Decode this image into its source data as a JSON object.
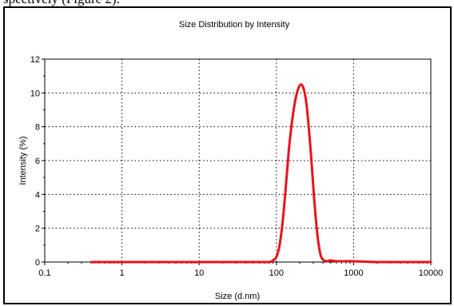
{
  "page": {
    "caption_fragment": "spectively (Figure 2)."
  },
  "chart_data": {
    "type": "line",
    "title": "Size Distribution by Intensity",
    "xlabel": "Size (d.nm)",
    "ylabel": "Intensity (%)",
    "x_scale": "log",
    "xlim": [
      0.1,
      10000
    ],
    "ylim": [
      0,
      12
    ],
    "x_ticks": [
      0.1,
      1,
      10,
      100,
      1000,
      10000
    ],
    "x_tick_labels": [
      "0.1",
      "1",
      "10",
      "100",
      "1000",
      "10000"
    ],
    "y_ticks": [
      0,
      2,
      4,
      6,
      8,
      10,
      12
    ],
    "y_tick_labels": [
      "0",
      "2",
      "4",
      "6",
      "8",
      "10",
      "12"
    ],
    "grid": true,
    "series": [
      {
        "color": "#e8141c",
        "x": [
          0.4,
          1,
          10,
          50,
          80,
          90,
          100,
          110,
          120,
          130,
          140,
          150,
          170,
          190,
          210,
          230,
          250,
          280,
          310,
          340,
          370,
          400,
          450,
          500,
          600,
          800,
          1000,
          2000,
          5000,
          10000
        ],
        "y": [
          0,
          0,
          0,
          0,
          0,
          0.1,
          0.3,
          1.0,
          2.3,
          4.0,
          5.8,
          7.3,
          9.2,
          10.2,
          10.5,
          10.1,
          9.0,
          6.4,
          3.6,
          1.6,
          0.5,
          0.15,
          0.05,
          0.1,
          0.05,
          0.05,
          0.05,
          0,
          0,
          0
        ]
      }
    ]
  }
}
